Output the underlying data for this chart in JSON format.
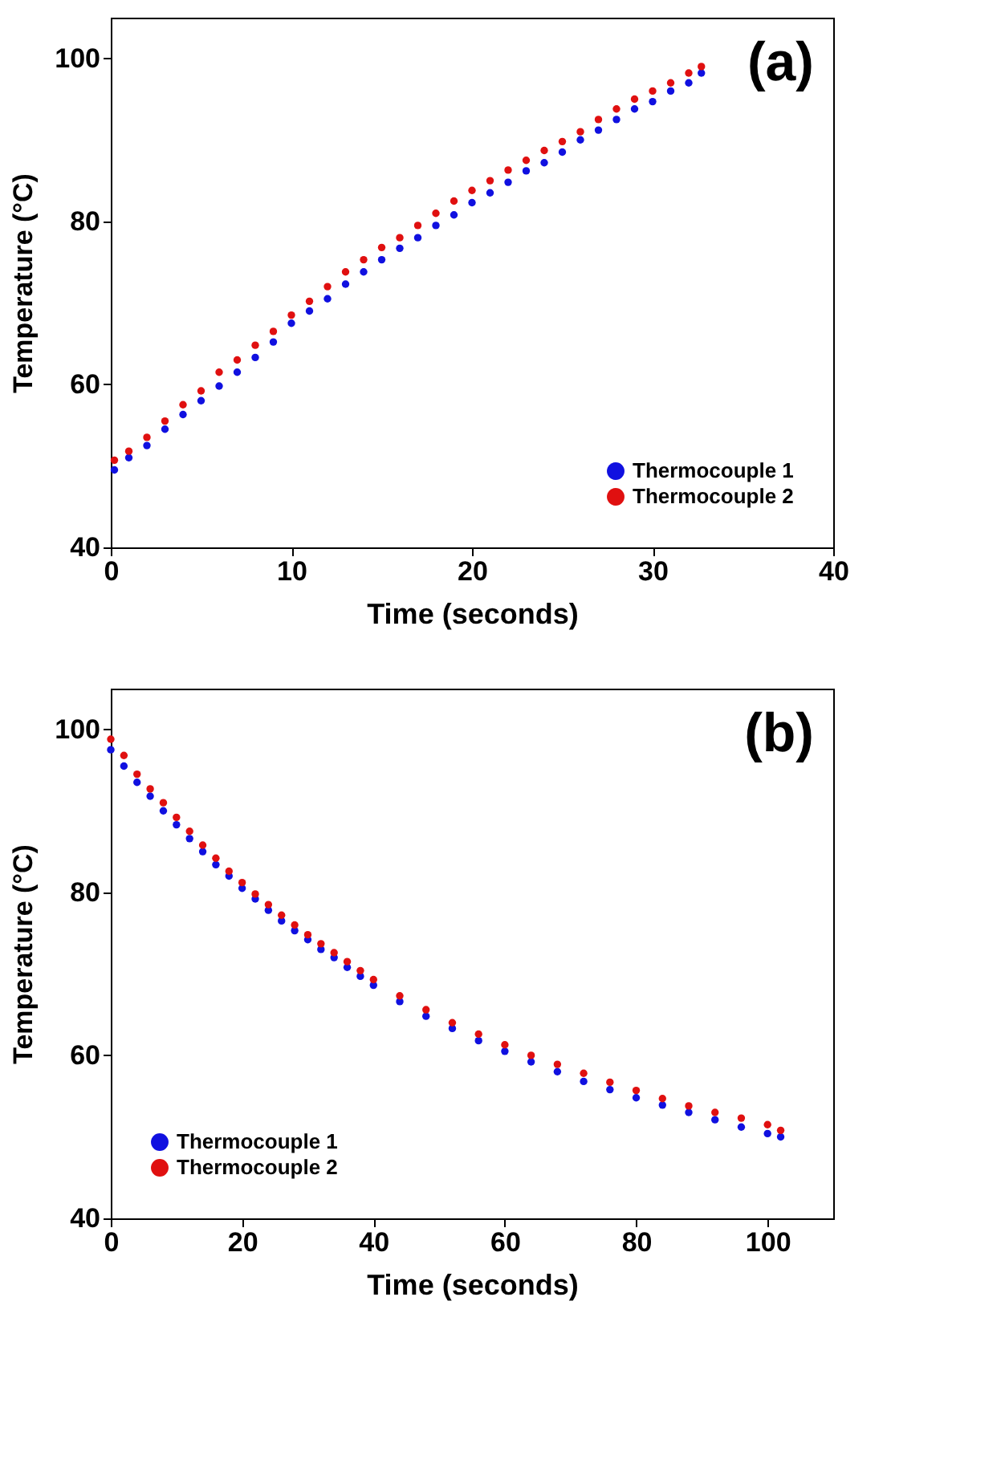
{
  "chart_data": [
    {
      "type": "scatter",
      "xlabel": "Time (seconds)",
      "ylabel": "Temperature (°C)",
      "annotations": [
        "(a)"
      ],
      "xlim": [
        0,
        40
      ],
      "xticks": [
        0,
        10,
        20,
        30,
        40
      ],
      "ylim": [
        40,
        105
      ],
      "yticks": [
        40,
        60,
        80,
        100
      ],
      "grid": false,
      "legend": "bottom right",
      "marker": "circle",
      "series": [
        {
          "name": "Thermocouple 1",
          "color": "#1010e0",
          "x": [
            0.2,
            1,
            2,
            3,
            4,
            5,
            6,
            7,
            8,
            9,
            10,
            11,
            12,
            13,
            14,
            15,
            16,
            17,
            18,
            19,
            20,
            21,
            22,
            23,
            24,
            25,
            26,
            27,
            28,
            29,
            30,
            31,
            32,
            32.7
          ],
          "values": [
            49.5,
            51,
            52.5,
            54.5,
            56.3,
            58,
            59.8,
            61.5,
            63.3,
            65.2,
            67.5,
            69,
            70.5,
            72.3,
            73.8,
            75.3,
            76.7,
            78,
            79.5,
            80.8,
            82.3,
            83.5,
            84.8,
            86.2,
            87.2,
            88.5,
            90,
            91.2,
            92.5,
            93.8,
            94.7,
            96,
            97,
            98.2
          ]
        },
        {
          "name": "Thermocouple 2",
          "color": "#e01010",
          "x": [
            0.2,
            1,
            2,
            3,
            4,
            5,
            6,
            7,
            8,
            9,
            10,
            11,
            12,
            13,
            14,
            15,
            16,
            17,
            18,
            19,
            20,
            21,
            22,
            23,
            24,
            25,
            26,
            27,
            28,
            29,
            30,
            31,
            32,
            32.7
          ],
          "values": [
            50.7,
            51.8,
            53.5,
            55.5,
            57.5,
            59.2,
            61.5,
            63,
            64.8,
            66.5,
            68.5,
            70.2,
            72,
            73.8,
            75.3,
            76.8,
            78,
            79.5,
            81,
            82.5,
            83.8,
            85,
            86.3,
            87.5,
            88.7,
            89.8,
            91,
            92.5,
            93.8,
            95,
            96,
            97,
            98.2,
            99
          ]
        }
      ]
    },
    {
      "type": "scatter",
      "xlabel": "Time (seconds)",
      "ylabel": "Temperature (°C)",
      "annotations": [
        "(b)"
      ],
      "xlim": [
        0,
        110
      ],
      "xticks": [
        0,
        20,
        40,
        60,
        80,
        100
      ],
      "ylim": [
        40,
        105
      ],
      "yticks": [
        40,
        60,
        80,
        100
      ],
      "grid": false,
      "legend": "bottom left",
      "marker": "circle",
      "series": [
        {
          "name": "Thermocouple 1",
          "color": "#1010e0",
          "x": [
            0,
            2,
            4,
            6,
            8,
            10,
            12,
            14,
            16,
            18,
            20,
            22,
            24,
            26,
            28,
            30,
            32,
            34,
            36,
            38,
            40,
            44,
            48,
            52,
            56,
            60,
            64,
            68,
            72,
            76,
            80,
            84,
            88,
            92,
            96,
            100,
            102
          ],
          "values": [
            97.5,
            95.5,
            93.5,
            91.8,
            90,
            88.3,
            86.6,
            85,
            83.4,
            82,
            80.5,
            79.2,
            77.8,
            76.5,
            75.3,
            74.2,
            73,
            72,
            70.8,
            69.7,
            68.6,
            66.6,
            64.8,
            63.3,
            61.8,
            60.5,
            59.2,
            58,
            56.8,
            55.8,
            54.8,
            53.9,
            53,
            52.1,
            51.2,
            50.4,
            50
          ]
        },
        {
          "name": "Thermocouple 2",
          "color": "#e01010",
          "x": [
            0,
            2,
            4,
            6,
            8,
            10,
            12,
            14,
            16,
            18,
            20,
            22,
            24,
            26,
            28,
            30,
            32,
            34,
            36,
            38,
            40,
            44,
            48,
            52,
            56,
            60,
            64,
            68,
            72,
            76,
            80,
            84,
            88,
            92,
            96,
            100,
            102
          ],
          "values": [
            98.8,
            96.8,
            94.5,
            92.7,
            91,
            89.2,
            87.5,
            85.8,
            84.2,
            82.6,
            81.2,
            79.8,
            78.5,
            77.2,
            76,
            74.8,
            73.7,
            72.6,
            71.5,
            70.4,
            69.3,
            67.3,
            65.6,
            64,
            62.6,
            61.3,
            60,
            58.9,
            57.8,
            56.7,
            55.7,
            54.7,
            53.8,
            53,
            52.3,
            51.5,
            50.8
          ]
        }
      ]
    }
  ]
}
